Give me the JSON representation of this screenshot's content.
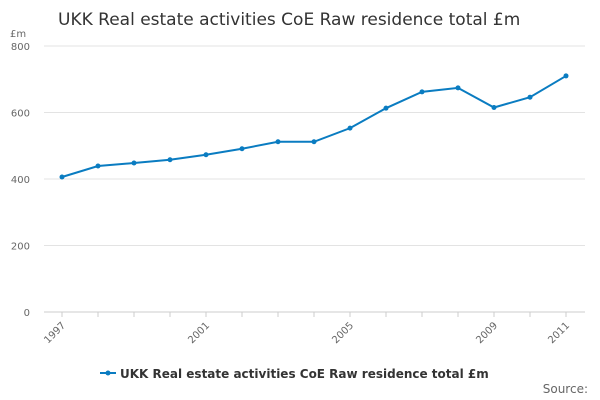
{
  "chart_data": {
    "type": "line",
    "title": "UKK Real estate activities CoE Raw residence total £m",
    "ylabel": "£m",
    "xlabel": "",
    "ylim": [
      0,
      800
    ],
    "yticks": [
      0,
      200,
      400,
      600,
      800
    ],
    "x": [
      1997,
      1998,
      1999,
      2000,
      2001,
      2002,
      2003,
      2004,
      2005,
      2006,
      2007,
      2008,
      2009,
      2010,
      2011
    ],
    "xtick_labels": [
      "1997",
      "2001",
      "2005",
      "2009",
      "2011"
    ],
    "series": [
      {
        "name": "UKK Real estate activities CoE Raw residence total £m",
        "color": "#0a7cc1",
        "values": [
          406,
          439,
          448,
          458,
          473,
          491,
          512,
          512,
          553,
          613,
          662,
          674,
          615,
          646,
          710
        ]
      }
    ],
    "grid": true,
    "legend": "bottom-center",
    "source": "Source:"
  }
}
